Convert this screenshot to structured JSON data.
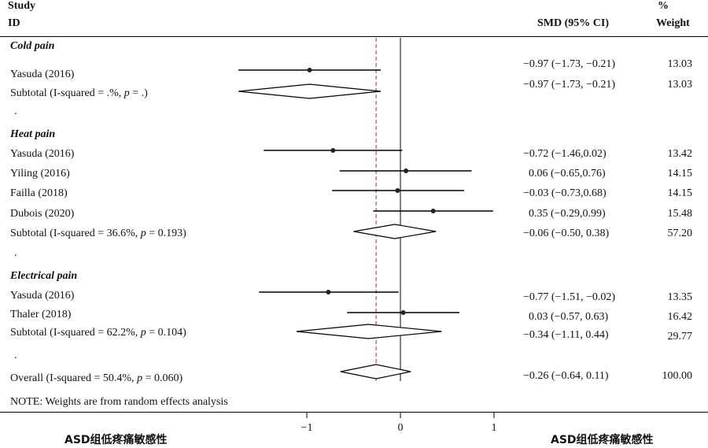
{
  "header": {
    "study_line1": "Study",
    "study_line2": "ID",
    "effect_label": "SMD (95% CI)",
    "weight_line1": "%",
    "weight_line2": "Weight"
  },
  "groups": [
    {
      "title": "Cold pain",
      "studies": [
        {
          "name": "Yasuda (2016)",
          "ci": "−0.97 (−1.73, −0.21)",
          "weight": "13.03"
        }
      ],
      "subtotal": {
        "label_pre": "Subtotal (I-squared = .%, ",
        "p_label": "p",
        "p_val": " = .)",
        "ci": "−0.97 (−1.73, −0.21)",
        "weight": "13.03"
      },
      "dot": "."
    },
    {
      "title": "Heat pain",
      "studies": [
        {
          "name": "Yasuda (2016)",
          "ci": "−0.72 (−1.46,0.02)",
          "weight": "13.42"
        },
        {
          "name": "Yiling (2016)",
          "ci": "0.06 (−0.65,0.76)",
          "weight": "14.15"
        },
        {
          "name": "Failla (2018)",
          "ci": "−0.03 (−0.73,0.68)",
          "weight": "14.15"
        },
        {
          "name": "Dubois (2020)",
          "ci": "0.35 (−0.29,0.99)",
          "weight": "15.48"
        }
      ],
      "subtotal": {
        "label_pre": "Subtotal (I-squared = 36.6%, ",
        "p_label": "p",
        "p_val": " = 0.193)",
        "ci": "−0.06 (−0.50, 0.38)",
        "weight": "57.20"
      },
      "dot": "."
    },
    {
      "title": "Electrical pain",
      "studies": [
        {
          "name": "Yasuda (2016)",
          "ci": "−0.77 (−1.51, −0.02)",
          "weight": "13.35"
        },
        {
          "name": "Thaler (2018)",
          "ci": "0.03 (−0.57, 0.63)",
          "weight": "16.42"
        }
      ],
      "subtotal": {
        "label_pre": "Subtotal (I-squared = 62.2%, ",
        "p_label": "p",
        "p_val": " = 0.104)",
        "ci": "−0.34 (−1.11, 0.44)",
        "weight": "29.77"
      },
      "dot": "."
    }
  ],
  "overall": {
    "label_pre": "Overall (I-squared = 50.4%, ",
    "p_label": "p",
    "p_val": " = 0.060)",
    "ci": "−0.26 (−0.64, 0.11)",
    "weight": "100.00"
  },
  "note": "NOTE: Weights are from random effects analysis",
  "footer": {
    "left_label": "ASD组低疼痛敏感性",
    "right_label": "ASD组低疼痛敏感性"
  },
  "colors": {
    "line": "#000000",
    "ref_line": "#9b2c4a"
  },
  "chart_data": {
    "type": "forest",
    "xlim": [
      -1.75,
      1.0
    ],
    "xticks": [
      -1,
      0,
      1
    ],
    "xtick_labels": [
      "−1",
      "0",
      "1"
    ],
    "null_line": 0,
    "overall_line": -0.26,
    "rows": [
      {
        "kind": "study",
        "group": "Cold pain",
        "est": -0.97,
        "lo": -1.73,
        "hi": -0.21
      },
      {
        "kind": "subtotal",
        "group": "Cold pain",
        "est": -0.97,
        "lo": -1.73,
        "hi": -0.21
      },
      {
        "kind": "study",
        "group": "Heat pain",
        "est": -0.72,
        "lo": -1.46,
        "hi": 0.02
      },
      {
        "kind": "study",
        "group": "Heat pain",
        "est": 0.06,
        "lo": -0.65,
        "hi": 0.76
      },
      {
        "kind": "study",
        "group": "Heat pain",
        "est": -0.03,
        "lo": -0.73,
        "hi": 0.68
      },
      {
        "kind": "study",
        "group": "Heat pain",
        "est": 0.35,
        "lo": -0.29,
        "hi": 0.99
      },
      {
        "kind": "subtotal",
        "group": "Heat pain",
        "est": -0.06,
        "lo": -0.5,
        "hi": 0.38
      },
      {
        "kind": "study",
        "group": "Electrical pain",
        "est": -0.77,
        "lo": -1.51,
        "hi": -0.02
      },
      {
        "kind": "study",
        "group": "Electrical pain",
        "est": 0.03,
        "lo": -0.57,
        "hi": 0.63
      },
      {
        "kind": "subtotal",
        "group": "Electrical pain",
        "est": -0.34,
        "lo": -1.11,
        "hi": 0.44
      },
      {
        "kind": "overall",
        "group": "Overall",
        "est": -0.26,
        "lo": -0.64,
        "hi": 0.11
      }
    ]
  }
}
